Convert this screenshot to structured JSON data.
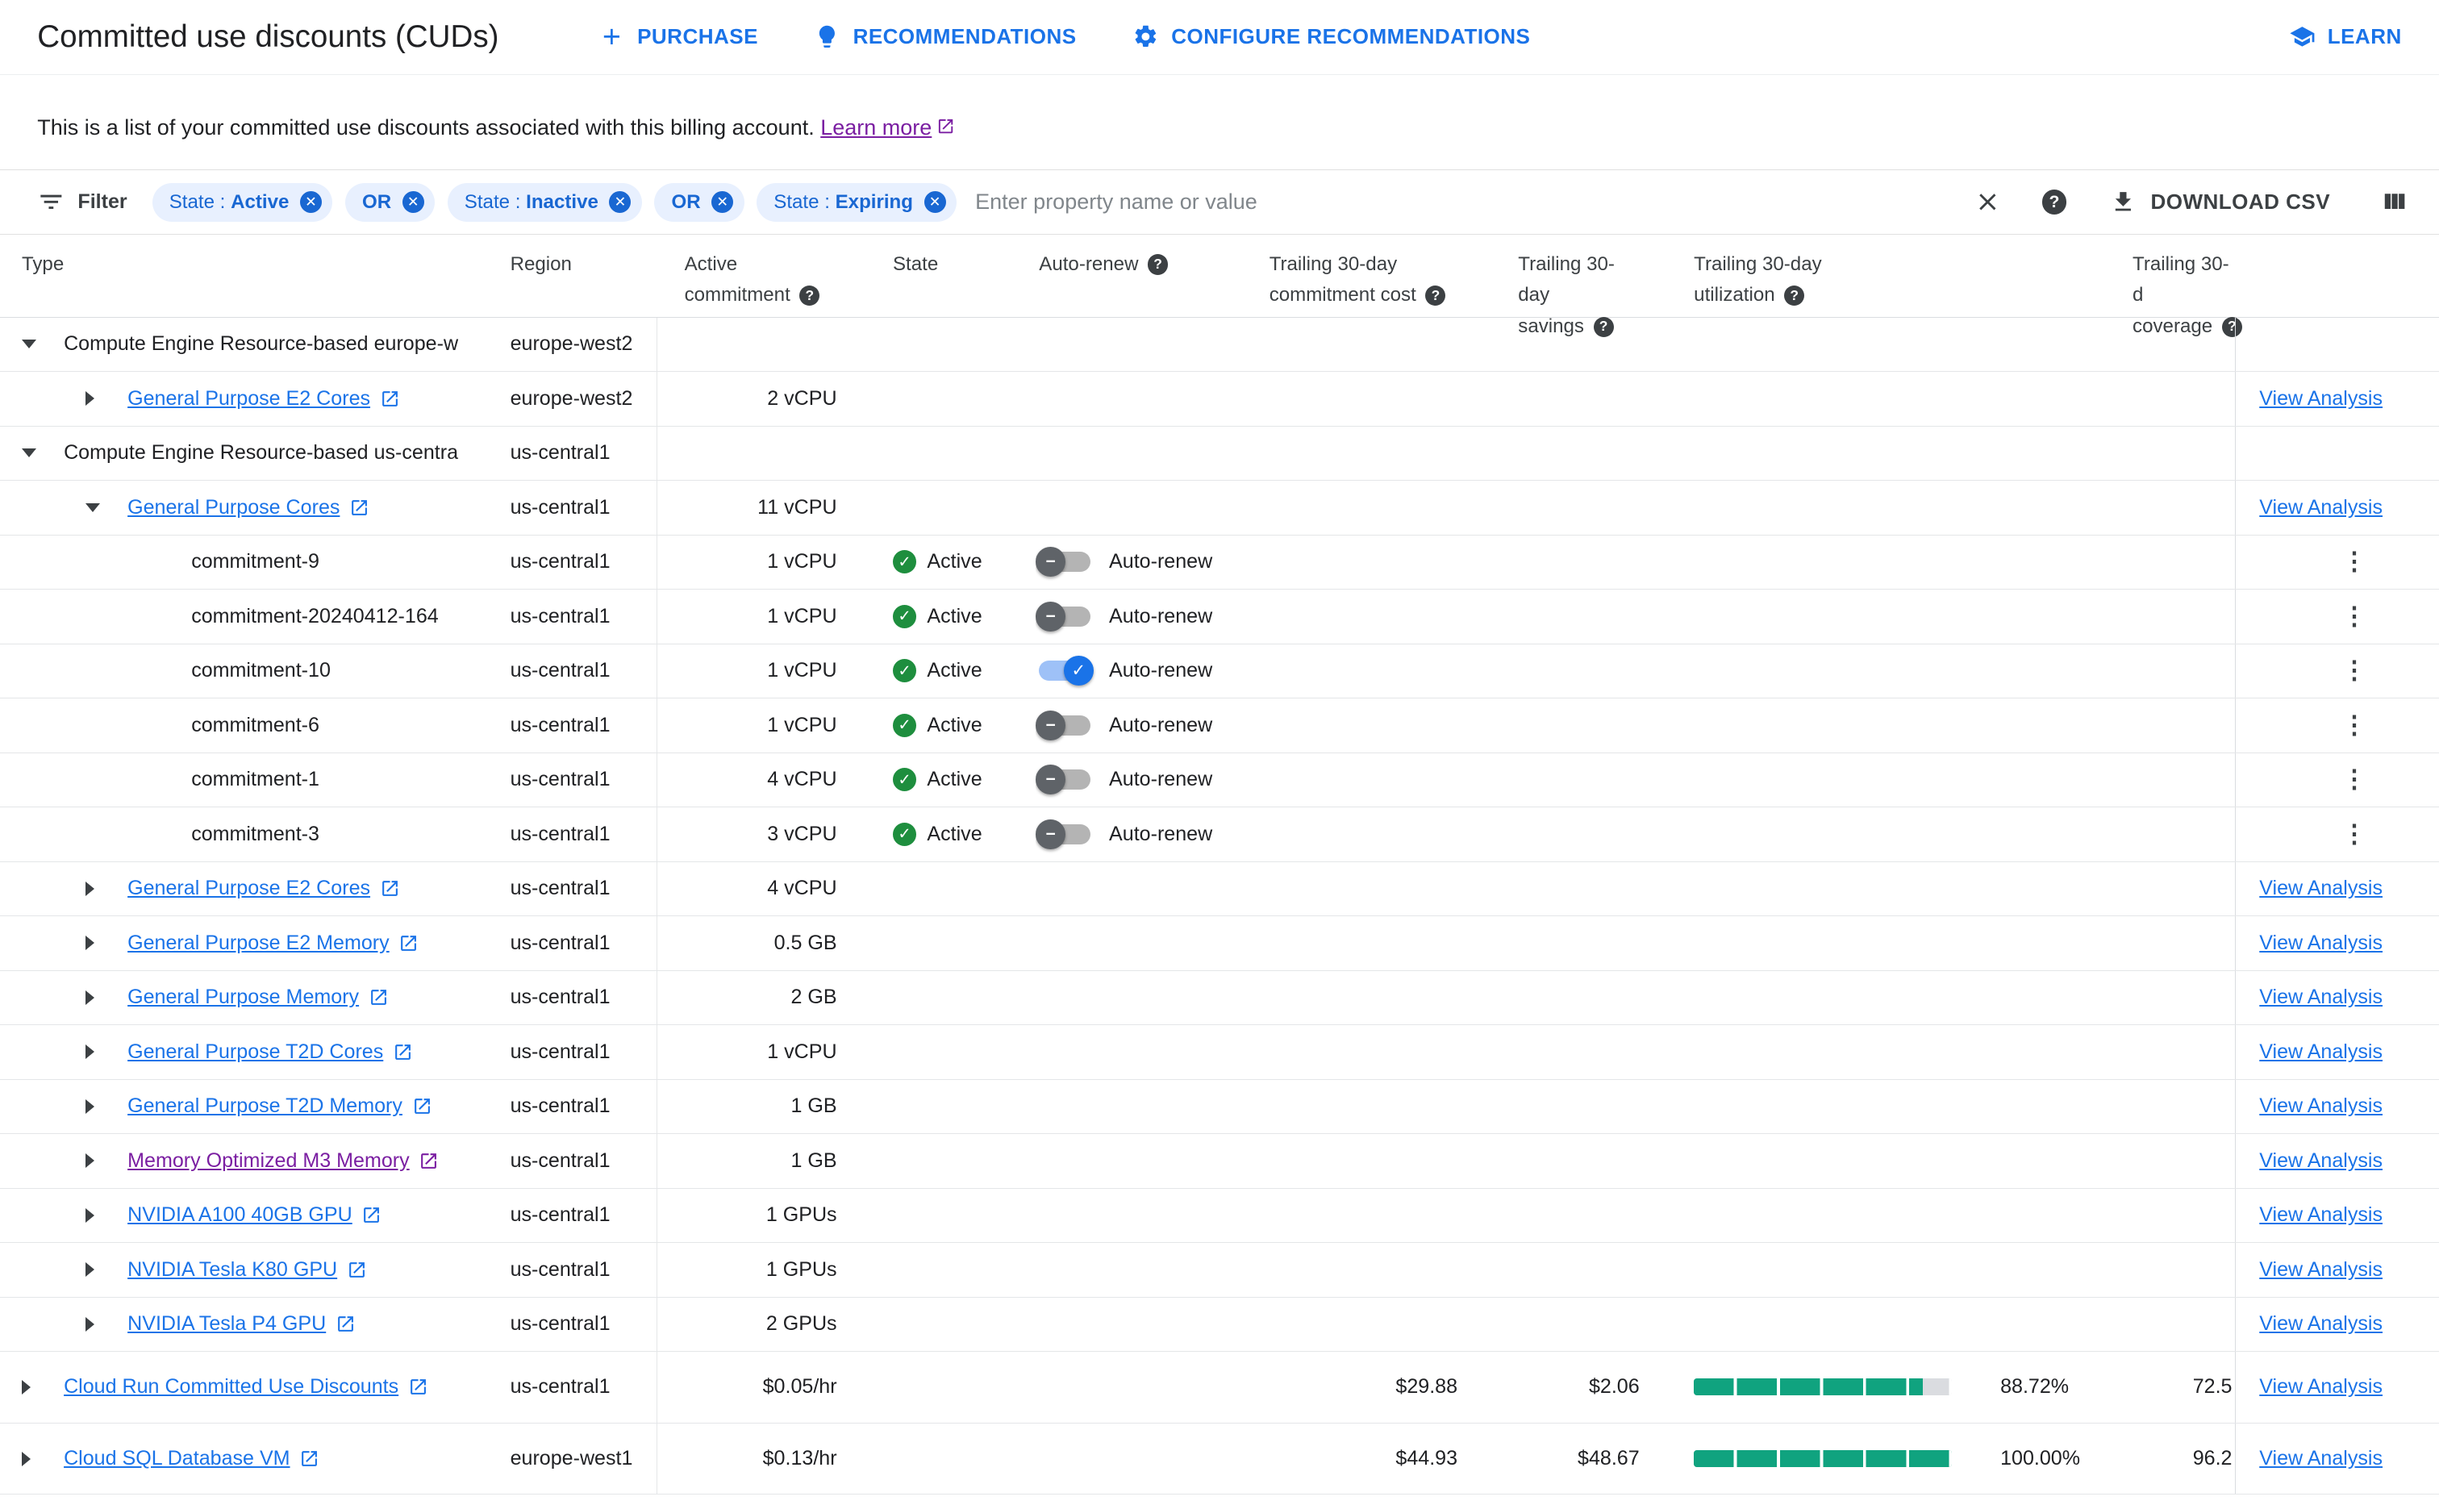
{
  "colors": {
    "accent_blue": "#1a73e8",
    "visited_purple": "#7b1fa2",
    "chip_bg": "#e8f0fe",
    "chip_text": "#1967d2",
    "active_green": "#1e8e3e",
    "toggle_on_track": "#9ec1f7",
    "toggle_on_knob": "#1a73e8",
    "utilization_teal": "#10a37f"
  },
  "header": {
    "title": "Committed use discounts (CUDs)",
    "purchase_label": "PURCHASE",
    "recommendations_label": "RECOMMENDATIONS",
    "configure_label": "CONFIGURE RECOMMENDATIONS",
    "learn_label": "LEARN"
  },
  "description": {
    "text": "This is a list of your committed use discounts associated with this billing account.",
    "learn_more": "Learn more"
  },
  "filter_bar": {
    "filter_label": "Filter",
    "chips": [
      {
        "prefix": "State : ",
        "value": "Active"
      },
      {
        "prefix": "",
        "value": "OR"
      },
      {
        "prefix": "State : ",
        "value": "Inactive"
      },
      {
        "prefix": "",
        "value": "OR"
      },
      {
        "prefix": "State : ",
        "value": "Expiring"
      }
    ],
    "placeholder": "Enter property name or value",
    "download_label": "DOWNLOAD CSV"
  },
  "table": {
    "auto_renew_label": "Auto-renew",
    "view_analysis_label": "View Analysis",
    "columns": [
      {
        "line1": "Type",
        "line2": ""
      },
      {
        "line1": "Region",
        "line2": ""
      },
      {
        "line1": "Active",
        "line2": "commitment"
      },
      {
        "line1": "State",
        "line2": ""
      },
      {
        "line1": "Auto-renew",
        "line2": ""
      },
      {
        "line1": "Trailing 30-day",
        "line2": "commitment cost"
      },
      {
        "line1": "Trailing 30-day",
        "line2": "savings"
      },
      {
        "line1": "Trailing 30-day",
        "line2": "utilization"
      },
      {
        "line1": "Trailing 30-d",
        "line2": "coverage"
      }
    ],
    "rows": [
      {
        "kind": "group",
        "expander": "expanded",
        "indent": 0,
        "name": "Compute Engine Resource-based europe-w",
        "region": "europe-west2",
        "commitment": "",
        "action": "none"
      },
      {
        "kind": "link",
        "expander": "collapsed",
        "indent": 1,
        "name": "General Purpose E2 Cores",
        "region": "europe-west2",
        "commitment": "2 vCPU",
        "action": "view"
      },
      {
        "kind": "group",
        "expander": "expanded",
        "indent": 0,
        "name": "Compute Engine Resource-based us-centra",
        "region": "us-central1",
        "commitment": "",
        "action": "none"
      },
      {
        "kind": "link",
        "expander": "expanded",
        "indent": 1,
        "name": "General Purpose Cores",
        "region": "us-central1",
        "commitment": "11 vCPU",
        "action": "view"
      },
      {
        "kind": "commitment",
        "expander": "none",
        "indent": 2,
        "name": "commitment-9",
        "region": "us-central1",
        "commitment": "1 vCPU",
        "state": "Active",
        "auto_renew": "off",
        "action": "kebab"
      },
      {
        "kind": "commitment",
        "expander": "none",
        "indent": 2,
        "name": "commitment-20240412-164",
        "region": "us-central1",
        "commitment": "1 vCPU",
        "state": "Active",
        "auto_renew": "off",
        "action": "kebab"
      },
      {
        "kind": "commitment",
        "expander": "none",
        "indent": 2,
        "name": "commitment-10",
        "region": "us-central1",
        "commitment": "1 vCPU",
        "state": "Active",
        "auto_renew": "on",
        "action": "kebab"
      },
      {
        "kind": "commitment",
        "expander": "none",
        "indent": 2,
        "name": "commitment-6",
        "region": "us-central1",
        "commitment": "1 vCPU",
        "state": "Active",
        "auto_renew": "off",
        "action": "kebab"
      },
      {
        "kind": "commitment",
        "expander": "none",
        "indent": 2,
        "name": "commitment-1",
        "region": "us-central1",
        "commitment": "4 vCPU",
        "state": "Active",
        "auto_renew": "off",
        "action": "kebab"
      },
      {
        "kind": "commitment",
        "expander": "none",
        "indent": 2,
        "name": "commitment-3",
        "region": "us-central1",
        "commitment": "3 vCPU",
        "state": "Active",
        "auto_renew": "off",
        "action": "kebab"
      },
      {
        "kind": "link",
        "expander": "collapsed",
        "indent": 1,
        "name": "General Purpose E2 Cores",
        "region": "us-central1",
        "commitment": "4 vCPU",
        "action": "view"
      },
      {
        "kind": "link",
        "expander": "collapsed",
        "indent": 1,
        "name": "General Purpose E2 Memory",
        "region": "us-central1",
        "commitment": "0.5 GB",
        "action": "view"
      },
      {
        "kind": "link",
        "expander": "collapsed",
        "indent": 1,
        "name": "General Purpose Memory",
        "region": "us-central1",
        "commitment": "2 GB",
        "action": "view"
      },
      {
        "kind": "link",
        "expander": "collapsed",
        "indent": 1,
        "name": "General Purpose T2D Cores",
        "region": "us-central1",
        "commitment": "1 vCPU",
        "action": "view"
      },
      {
        "kind": "link",
        "expander": "collapsed",
        "indent": 1,
        "name": "General Purpose T2D Memory",
        "region": "us-central1",
        "commitment": "1 GB",
        "action": "view"
      },
      {
        "kind": "link",
        "expander": "collapsed",
        "indent": 1,
        "name": "Memory Optimized M3 Memory",
        "region": "us-central1",
        "commitment": "1 GB",
        "action": "view",
        "visited": true
      },
      {
        "kind": "link",
        "expander": "collapsed",
        "indent": 1,
        "name": "NVIDIA A100 40GB GPU",
        "region": "us-central1",
        "commitment": "1 GPUs",
        "action": "view"
      },
      {
        "kind": "link",
        "expander": "collapsed",
        "indent": 1,
        "name": "NVIDIA Tesla K80 GPU",
        "region": "us-central1",
        "commitment": "1 GPUs",
        "action": "view"
      },
      {
        "kind": "link",
        "expander": "collapsed",
        "indent": 1,
        "name": "NVIDIA Tesla P4 GPU",
        "region": "us-central1",
        "commitment": "2 GPUs",
        "action": "view"
      },
      {
        "kind": "link",
        "expander": "collapsed",
        "indent": 0,
        "name": "Cloud Run Committed Use Discounts",
        "region": "us-central1",
        "commitment": "$0.05/hr",
        "cost": "$29.88",
        "savings": "$2.06",
        "utilization_pct": 88.72,
        "utilization_label": "88.72%",
        "coverage": "72.5",
        "action": "view",
        "tall": true
      },
      {
        "kind": "link",
        "expander": "collapsed",
        "indent": 0,
        "name": "Cloud SQL Database VM",
        "region": "europe-west1",
        "commitment": "$0.13/hr",
        "cost": "$44.93",
        "savings": "$48.67",
        "utilization_pct": 100,
        "utilization_label": "100.00%",
        "coverage": "96.2",
        "action": "view",
        "tall": true
      }
    ]
  }
}
